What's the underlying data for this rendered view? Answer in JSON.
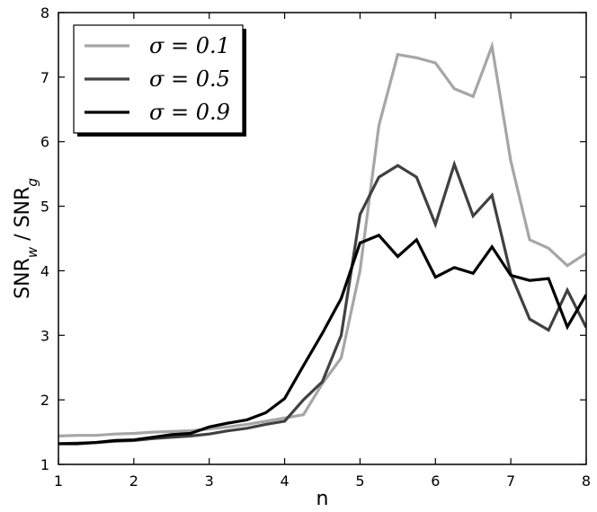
{
  "chart_data": {
    "type": "line",
    "xlabel": "n",
    "ylabel": {
      "base": "SNR",
      "sub_w": "w",
      "sep": " / ",
      "sub_g": "g"
    },
    "xlim": [
      1,
      8
    ],
    "ylim": [
      1,
      8
    ],
    "xticks": [
      "1",
      "2",
      "3",
      "4",
      "5",
      "6",
      "7",
      "8"
    ],
    "yticks": [
      "1",
      "2",
      "3",
      "4",
      "5",
      "6",
      "7",
      "8"
    ],
    "grid": false,
    "legend_position": "top-left",
    "x": [
      1.0,
      1.25,
      1.5,
      1.75,
      2.0,
      2.25,
      2.5,
      2.75,
      3.0,
      3.25,
      3.5,
      3.75,
      4.0,
      4.25,
      4.5,
      4.75,
      5.0,
      5.25,
      5.5,
      5.75,
      6.0,
      6.25,
      6.5,
      6.75,
      7.0,
      7.25,
      7.5,
      7.75,
      8.0
    ],
    "series": [
      {
        "name": "σ = 0.1",
        "color": "#a6a6a6",
        "values": [
          1.44,
          1.45,
          1.45,
          1.47,
          1.48,
          1.5,
          1.51,
          1.52,
          1.55,
          1.58,
          1.62,
          1.67,
          1.72,
          1.77,
          2.25,
          2.65,
          4.0,
          6.25,
          7.35,
          7.3,
          7.22,
          6.82,
          6.7,
          7.48,
          5.7,
          4.48,
          4.35,
          4.08,
          4.27
        ]
      },
      {
        "name": "σ = 0.5",
        "color": "#404040",
        "values": [
          1.32,
          1.33,
          1.34,
          1.36,
          1.37,
          1.4,
          1.42,
          1.44,
          1.47,
          1.52,
          1.56,
          1.62,
          1.67,
          2.0,
          2.28,
          3.0,
          4.87,
          5.45,
          5.63,
          5.45,
          4.72,
          5.65,
          4.85,
          5.17,
          3.95,
          3.25,
          3.08,
          3.7,
          3.12
        ]
      },
      {
        "name": "σ = 0.9",
        "color": "#000000",
        "values": [
          1.32,
          1.32,
          1.34,
          1.37,
          1.38,
          1.42,
          1.46,
          1.48,
          1.58,
          1.64,
          1.69,
          1.8,
          2.02,
          2.53,
          3.03,
          3.57,
          4.43,
          4.55,
          4.22,
          4.48,
          3.9,
          4.05,
          3.96,
          4.37,
          3.93,
          3.85,
          3.88,
          3.13,
          3.63
        ]
      }
    ]
  }
}
